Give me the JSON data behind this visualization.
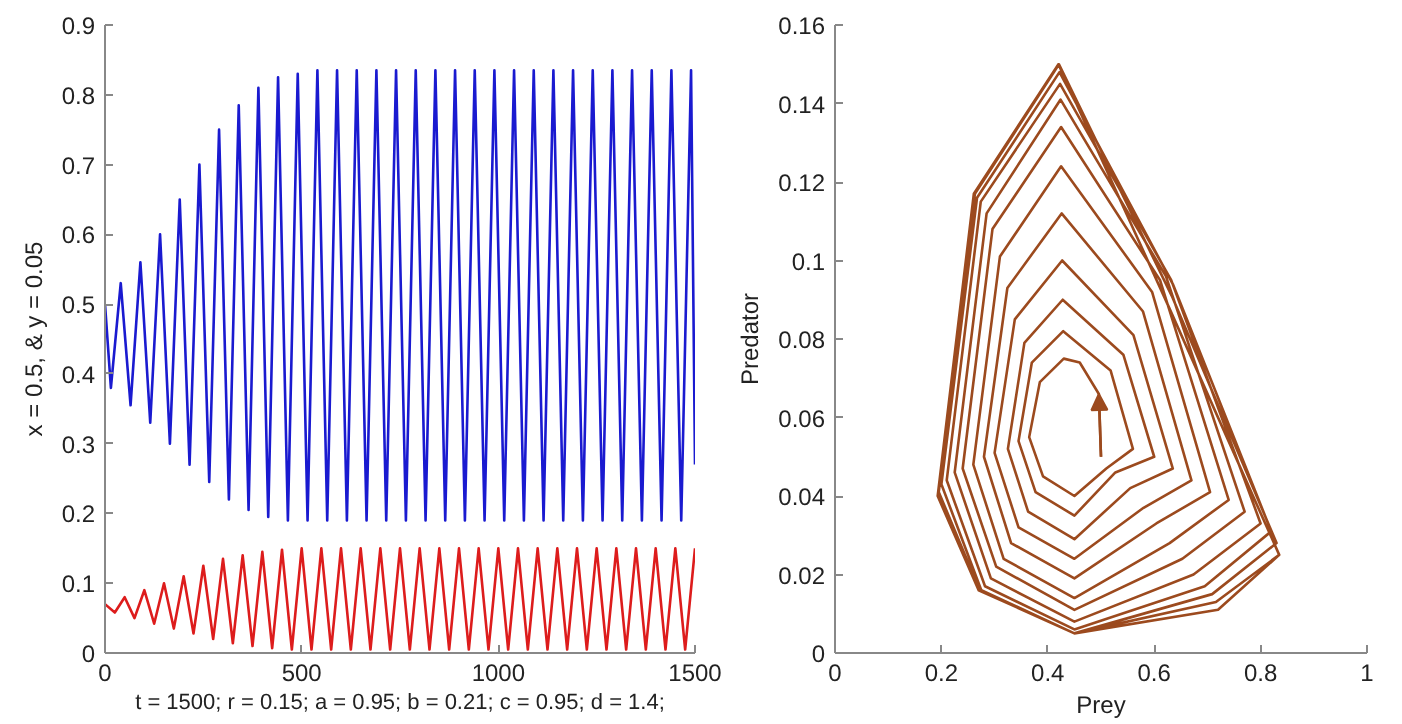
{
  "chart_data": [
    {
      "type": "line",
      "xlabel": "t = 1500; r = 0.15; a = 0.95; b = 0.21; c = 0.95; d = 1.4;",
      "ylabel": "x = 0.5, & y = 0.05",
      "xlim": [
        0,
        1500
      ],
      "ylim": [
        0,
        0.9
      ],
      "xticks": [
        0,
        500,
        1000,
        1500
      ],
      "yticks": [
        0,
        0.1,
        0.2,
        0.3,
        0.4,
        0.5,
        0.6,
        0.7,
        0.8,
        0.9
      ],
      "series": [
        {
          "color": "#1a1ad0",
          "x": [
            0,
            15,
            40,
            65,
            90,
            115,
            140,
            165,
            190,
            215,
            240,
            265,
            290,
            315,
            340,
            365,
            390,
            415,
            440,
            465,
            490,
            515,
            540,
            565,
            590,
            615,
            640,
            665,
            690,
            715,
            740,
            765,
            790,
            815,
            840,
            865,
            890,
            915,
            940,
            965,
            990,
            1015,
            1040,
            1065,
            1090,
            1115,
            1140,
            1165,
            1190,
            1215,
            1240,
            1265,
            1290,
            1315,
            1340,
            1365,
            1390,
            1415,
            1440,
            1465,
            1490,
            1500
          ],
          "values": [
            0.5,
            0.38,
            0.53,
            0.355,
            0.56,
            0.33,
            0.6,
            0.3,
            0.65,
            0.27,
            0.7,
            0.245,
            0.75,
            0.22,
            0.785,
            0.205,
            0.81,
            0.195,
            0.825,
            0.19,
            0.83,
            0.19,
            0.835,
            0.19,
            0.835,
            0.19,
            0.835,
            0.19,
            0.835,
            0.19,
            0.835,
            0.19,
            0.835,
            0.19,
            0.835,
            0.19,
            0.835,
            0.19,
            0.835,
            0.19,
            0.835,
            0.19,
            0.835,
            0.19,
            0.835,
            0.19,
            0.835,
            0.19,
            0.835,
            0.19,
            0.835,
            0.19,
            0.835,
            0.19,
            0.835,
            0.19,
            0.835,
            0.19,
            0.835,
            0.19,
            0.835,
            0.27
          ]
        },
        {
          "color": "#dd1c1c",
          "x": [
            0,
            25,
            50,
            75,
            100,
            125,
            150,
            175,
            200,
            225,
            250,
            275,
            300,
            325,
            350,
            375,
            400,
            425,
            450,
            475,
            500,
            525,
            550,
            575,
            600,
            625,
            650,
            675,
            700,
            725,
            750,
            775,
            800,
            825,
            850,
            875,
            900,
            925,
            950,
            975,
            1000,
            1025,
            1050,
            1075,
            1100,
            1125,
            1150,
            1175,
            1200,
            1225,
            1250,
            1275,
            1300,
            1325,
            1350,
            1375,
            1400,
            1425,
            1450,
            1475,
            1500
          ],
          "values": [
            0.07,
            0.058,
            0.08,
            0.05,
            0.09,
            0.042,
            0.1,
            0.035,
            0.11,
            0.028,
            0.125,
            0.02,
            0.135,
            0.014,
            0.14,
            0.01,
            0.145,
            0.007,
            0.148,
            0.005,
            0.15,
            0.005,
            0.15,
            0.005,
            0.15,
            0.005,
            0.15,
            0.005,
            0.15,
            0.005,
            0.15,
            0.005,
            0.15,
            0.005,
            0.15,
            0.005,
            0.15,
            0.005,
            0.15,
            0.005,
            0.15,
            0.005,
            0.15,
            0.005,
            0.15,
            0.005,
            0.15,
            0.005,
            0.15,
            0.005,
            0.15,
            0.005,
            0.15,
            0.005,
            0.15,
            0.005,
            0.15,
            0.005,
            0.15,
            0.005,
            0.15
          ]
        }
      ]
    },
    {
      "type": "line",
      "xlabel": "Prey",
      "ylabel": "Predator",
      "xlim": [
        0,
        1
      ],
      "ylim": [
        0,
        0.16
      ],
      "xticks": [
        0,
        0.2,
        0.4,
        0.6,
        0.8,
        1
      ],
      "yticks": [
        0,
        0.02,
        0.04,
        0.06,
        0.08,
        0.1,
        0.12,
        0.14,
        0.16
      ],
      "series": [
        {
          "color": "#9c4a1e",
          "x": [
            0.5,
            0.496,
            0.46,
            0.43,
            0.385,
            0.365,
            0.391,
            0.45,
            0.51,
            0.56,
            0.518,
            0.429,
            0.37,
            0.345,
            0.377,
            0.45,
            0.527,
            0.6,
            0.542,
            0.428,
            0.356,
            0.325,
            0.363,
            0.45,
            0.555,
            0.635,
            0.561,
            0.427,
            0.338,
            0.3,
            0.345,
            0.45,
            0.58,
            0.67,
            0.579,
            0.426,
            0.324,
            0.28,
            0.331,
            0.45,
            0.604,
            0.705,
            0.596,
            0.425,
            0.31,
            0.26,
            0.317,
            0.45,
            0.629,
            0.74,
            0.611,
            0.425,
            0.296,
            0.24,
            0.303,
            0.45,
            0.653,
            0.77,
            0.622,
            0.424,
            0.285,
            0.225,
            0.293,
            0.45,
            0.674,
            0.8,
            0.632,
            0.423,
            0.274,
            0.21,
            0.282,
            0.45,
            0.695,
            0.82,
            0.635,
            0.422,
            0.267,
            0.2,
            0.275,
            0.45,
            0.709,
            0.83,
            0.633,
            0.421,
            0.263,
            0.195,
            0.272,
            0.45,
            0.716,
            0.835,
            0.628,
            0.42,
            0.261,
            0.193,
            0.27,
            0.45,
            0.72,
            0.835
          ],
          "values": [
            0.05,
            0.066,
            0.074,
            0.075,
            0.069,
            0.055,
            0.045,
            0.04,
            0.047,
            0.052,
            0.072,
            0.082,
            0.074,
            0.054,
            0.041,
            0.035,
            0.046,
            0.05,
            0.076,
            0.09,
            0.079,
            0.052,
            0.036,
            0.029,
            0.042,
            0.047,
            0.081,
            0.1,
            0.085,
            0.051,
            0.032,
            0.024,
            0.037,
            0.044,
            0.087,
            0.112,
            0.093,
            0.05,
            0.028,
            0.019,
            0.033,
            0.041,
            0.092,
            0.124,
            0.101,
            0.048,
            0.024,
            0.014,
            0.028,
            0.039,
            0.095,
            0.134,
            0.108,
            0.047,
            0.022,
            0.011,
            0.024,
            0.036,
            0.096,
            0.141,
            0.112,
            0.046,
            0.019,
            0.008,
            0.02,
            0.033,
            0.095,
            0.145,
            0.115,
            0.044,
            0.017,
            0.006,
            0.017,
            0.031,
            0.094,
            0.148,
            0.116,
            0.043,
            0.016,
            0.005,
            0.015,
            0.028,
            0.091,
            0.15,
            0.117,
            0.041,
            0.016,
            0.005,
            0.013,
            0.025,
            0.088,
            0.15,
            0.117,
            0.04,
            0.016,
            0.005,
            0.011,
            0.025
          ]
        }
      ]
    }
  ]
}
